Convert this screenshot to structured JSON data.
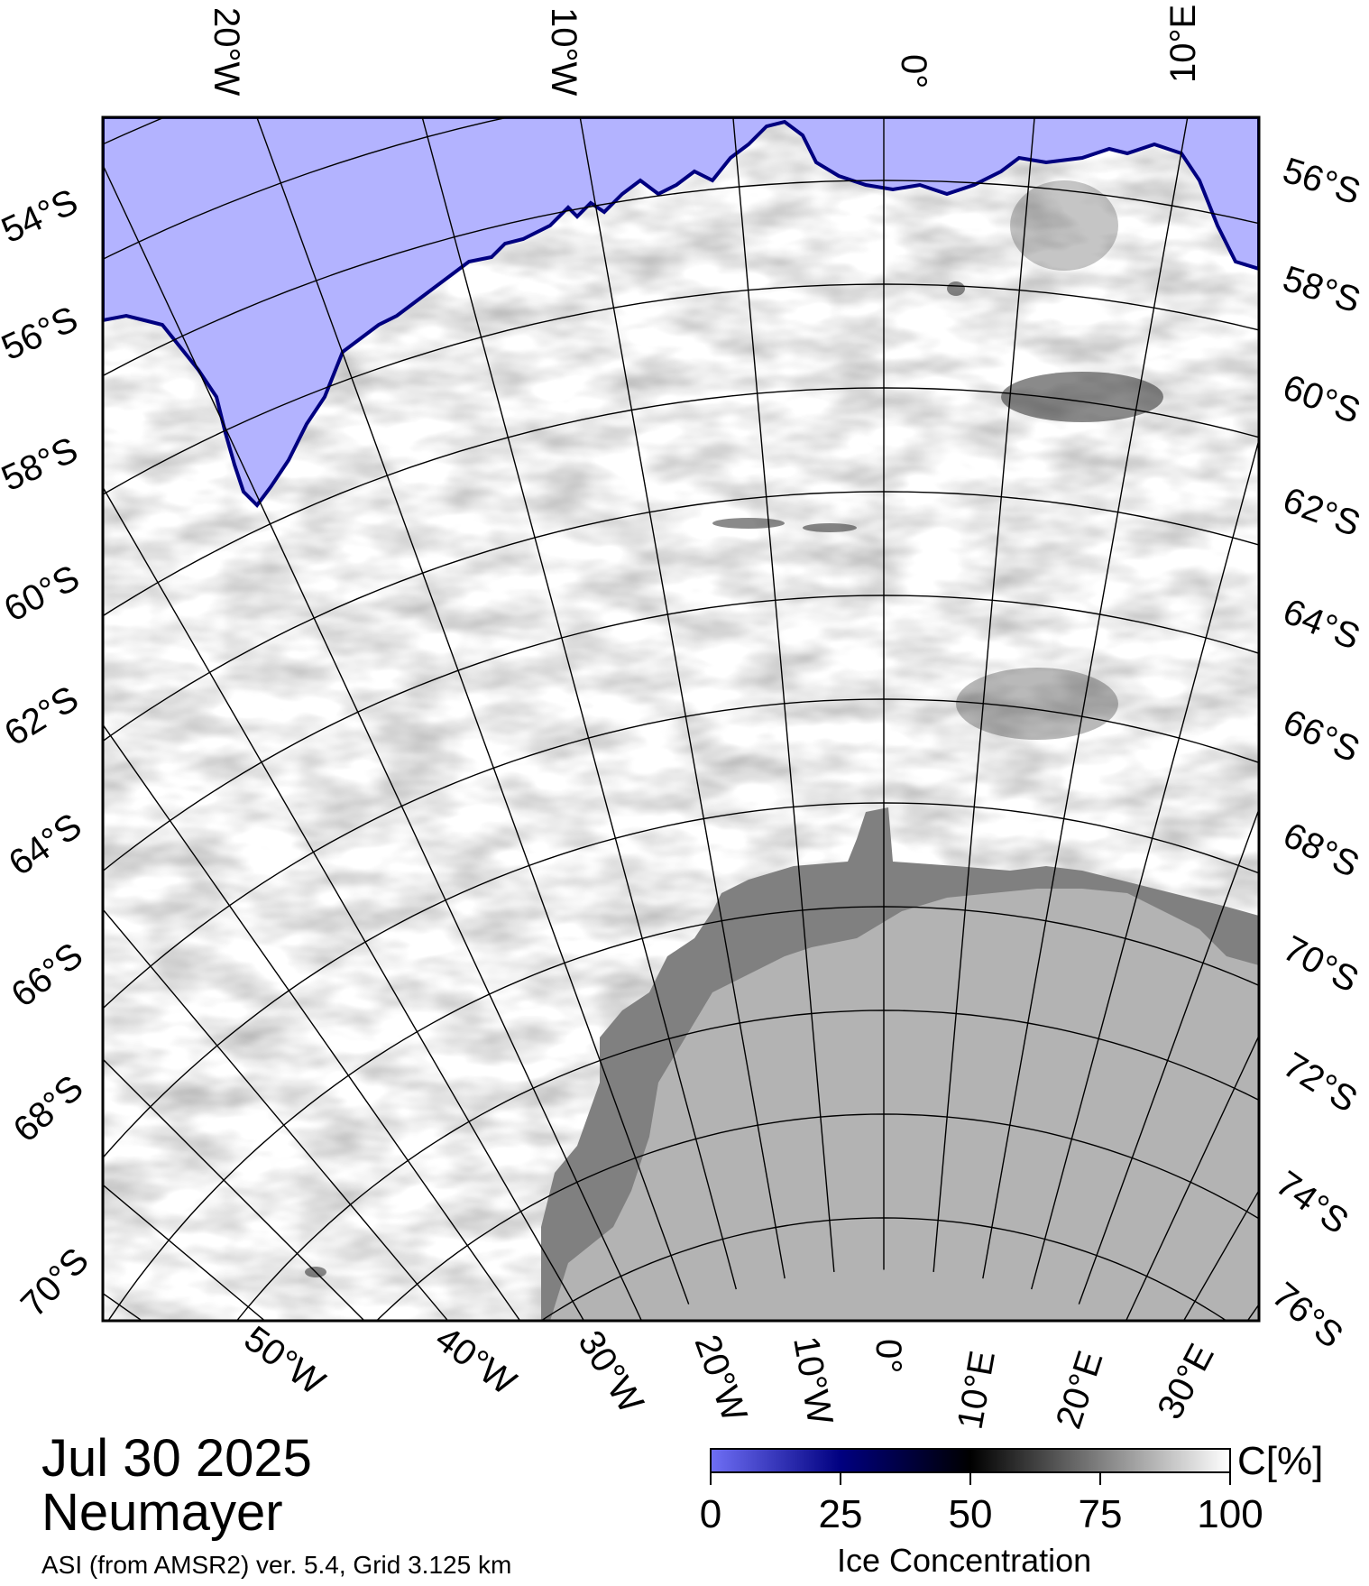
{
  "map": {
    "top_lon_labels": [
      "20°W",
      "10°W",
      "0°",
      "10°E"
    ],
    "left_lat_labels": [
      "54°S",
      "56°S",
      "58°S",
      "60°S",
      "62°S",
      "64°S",
      "66°S",
      "68°S",
      "70°S"
    ],
    "right_lat_labels": [
      "56°S",
      "58°S",
      "60°S",
      "62°S",
      "64°S",
      "66°S",
      "68°S",
      "70°S",
      "72°S",
      "74°S",
      "76°S"
    ],
    "bottom_lon_labels": [
      "50°W",
      "40°W",
      "30°W",
      "20°W",
      "10°W",
      "0°",
      "10°E",
      "20°E",
      "30°E"
    ],
    "colors": {
      "open_water": "#b3b3ff",
      "land_ice_shelf": "#808080",
      "land": "#b3b3b3",
      "ice_full": "#ffffff"
    }
  },
  "caption": {
    "date": "Jul 30 2025",
    "station": "Neumayer",
    "footnote": "ASI (from AMSR2) ver. 5.4,  Grid 3.125 km"
  },
  "colorbar": {
    "unit": "C[%]",
    "title": "Ice Concentration",
    "ticks": [
      "0",
      "25",
      "50",
      "75",
      "100"
    ],
    "stops": [
      "#6f6ff5",
      "#000080",
      "#000000",
      "#808080",
      "#ffffff"
    ]
  }
}
